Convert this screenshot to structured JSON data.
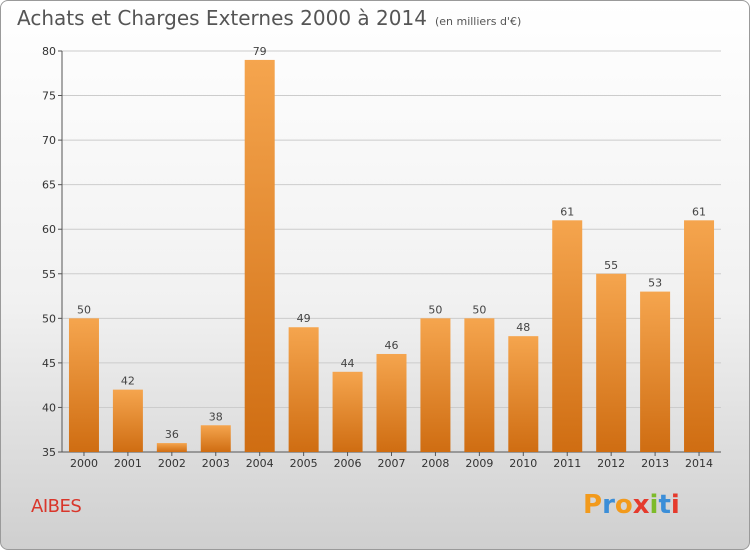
{
  "title": "Achats et Charges Externes 2000 à 2014",
  "subtitle": "(en milliers d'€)",
  "commune": "AIBES",
  "logo": {
    "text": "Proxiti",
    "colors": [
      "#f29a1c",
      "#3b8ed8",
      "#f29a1c",
      "#e53a2c",
      "#7dbb2a",
      "#3b8ed8",
      "#e53a2c"
    ]
  },
  "colors": {
    "bar_top": "#f5a54e",
    "bar_bottom": "#cf6d12",
    "commune": "#d9362b"
  },
  "chart_data": {
    "type": "bar",
    "categories": [
      "2000",
      "2001",
      "2002",
      "2003",
      "2004",
      "2005",
      "2006",
      "2007",
      "2008",
      "2009",
      "2010",
      "2011",
      "2012",
      "2013",
      "2014"
    ],
    "values": [
      50,
      42,
      36,
      38,
      79,
      49,
      44,
      46,
      50,
      50,
      48,
      61,
      55,
      53,
      61
    ],
    "ylim": [
      35,
      80
    ],
    "yticks": [
      35,
      40,
      45,
      50,
      55,
      60,
      65,
      70,
      75,
      80
    ],
    "grid": true
  }
}
